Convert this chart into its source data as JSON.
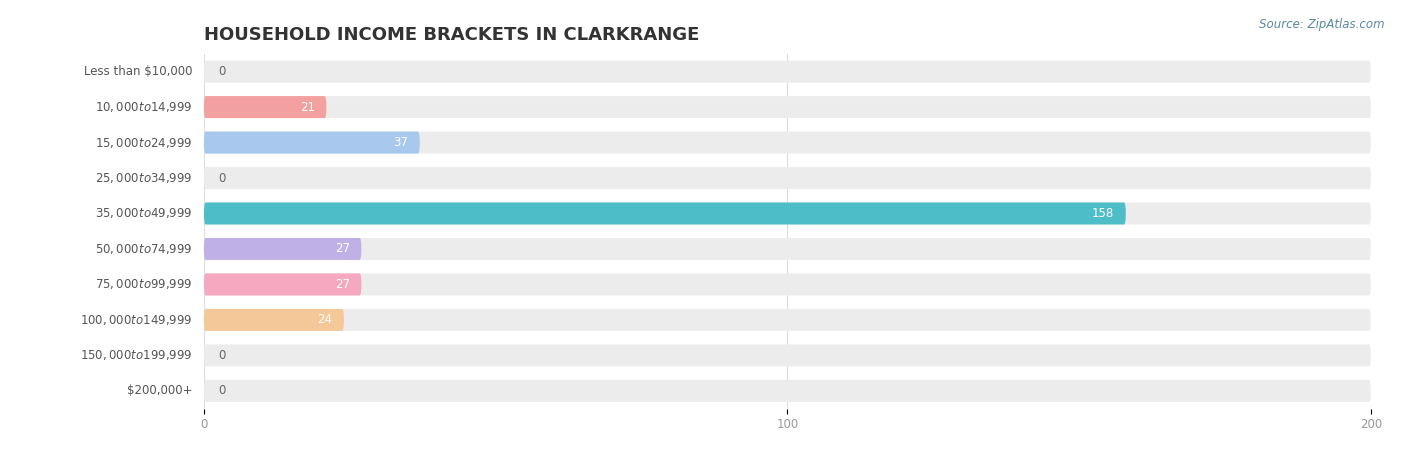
{
  "title": "HOUSEHOLD INCOME BRACKETS IN CLARKRANGE",
  "source": "Source: ZipAtlas.com",
  "categories": [
    "Less than $10,000",
    "$10,000 to $14,999",
    "$15,000 to $24,999",
    "$25,000 to $34,999",
    "$35,000 to $49,999",
    "$50,000 to $74,999",
    "$75,000 to $99,999",
    "$100,000 to $149,999",
    "$150,000 to $199,999",
    "$200,000+"
  ],
  "values": [
    0,
    21,
    37,
    0,
    158,
    27,
    27,
    24,
    0,
    0
  ],
  "bar_colors": [
    "#F5C99A",
    "#F2A0A0",
    "#A8C8EE",
    "#C8A8D8",
    "#4DBEC8",
    "#C0B0E8",
    "#F5A8C0",
    "#F5C89A",
    "#F2A0A0",
    "#A8C8EE"
  ],
  "bar_bg_color": "#ECECEC",
  "xlim": [
    0,
    200
  ],
  "xticks": [
    0,
    100,
    200
  ],
  "title_fontsize": 13,
  "label_fontsize": 8.5,
  "value_fontsize": 8.5,
  "source_fontsize": 8.5,
  "background_color": "#FFFFFF",
  "bar_height": 0.62,
  "label_color": "#555555",
  "value_color_inside": "#FFFFFF",
  "value_color_outside": "#666666",
  "source_color": "#5A8A9F",
  "tick_color": "#999999",
  "grid_color": "#DDDDDD"
}
